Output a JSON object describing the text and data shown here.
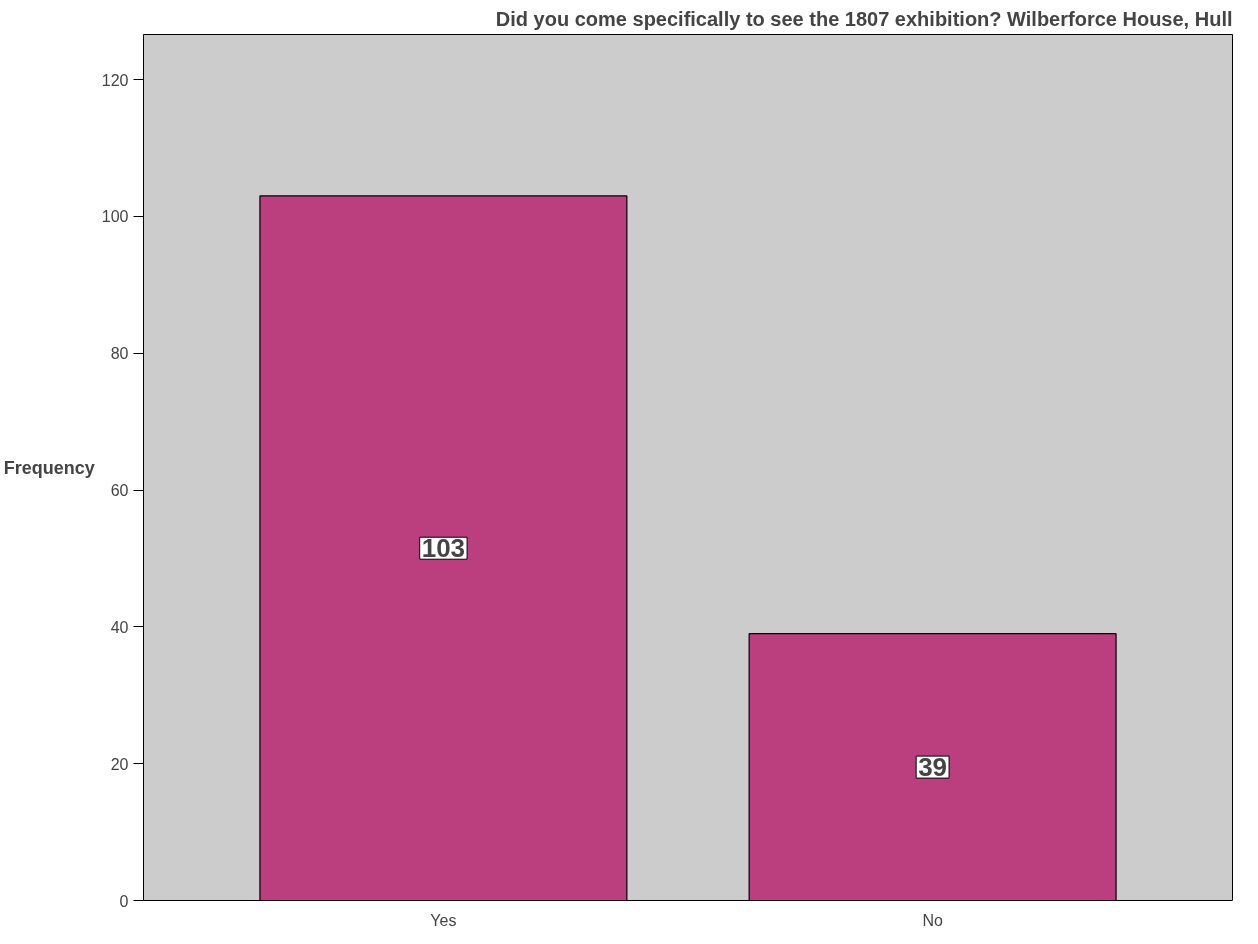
{
  "chart_data": {
    "type": "bar",
    "title": "Did you come specifically to see the 1807 exhibition? Wilberforce House, Hull",
    "ylabel": "Frequency",
    "categories": [
      "Yes",
      "No"
    ],
    "values": [
      103,
      39
    ],
    "color": "#bb3f7e",
    "ylim": [
      0,
      126.6
    ],
    "yticks": [
      0,
      20,
      40,
      60,
      80,
      100,
      120
    ],
    "data_labels": true,
    "grid": false
  }
}
